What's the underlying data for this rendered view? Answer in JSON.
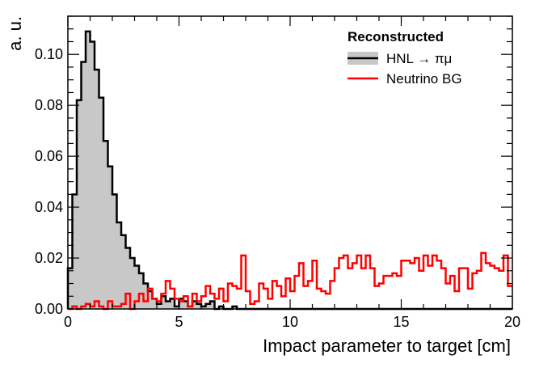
{
  "chart_data": {
    "type": "histogram",
    "title": "",
    "xlabel": "Impact parameter to target [cm]",
    "ylabel": "a. u.",
    "xlim": [
      0,
      20
    ],
    "ylim": [
      0,
      0.115
    ],
    "x_ticks": [
      0,
      5,
      10,
      15,
      20
    ],
    "x_tick_labels": [
      "0",
      "5",
      "10",
      "15",
      "20"
    ],
    "y_ticks": [
      0,
      0.02,
      0.04,
      0.06,
      0.08,
      0.1
    ],
    "y_tick_labels": [
      "0.00",
      "0.02",
      "0.04",
      "0.06",
      "0.08",
      "0.10"
    ],
    "grid": false,
    "legend": {
      "title": "Reconstructed",
      "placement": "top-right"
    },
    "bin_width": 0.2,
    "series": [
      {
        "name": "HNL → πμ",
        "color": "#000000",
        "fill": "#c8c8c8",
        "values": [
          0.016,
          0.045,
          0.082,
          0.097,
          0.109,
          0.105,
          0.094,
          0.083,
          0.066,
          0.056,
          0.045,
          0.034,
          0.029,
          0.024,
          0.02,
          0.017,
          0.014,
          0.01,
          0.007,
          0.004,
          0.002,
          0.005,
          0.003,
          0.004,
          0.001,
          0.004,
          0.003,
          0.001,
          0.003,
          0.002,
          0.001,
          0.002,
          0.003,
          0.0,
          0.001,
          0.0,
          0.0,
          0.001,
          0.0,
          0.0,
          0.0,
          0.0,
          0.0,
          0.0,
          0.0,
          0.0,
          0.0,
          0.0,
          0.0,
          0.0,
          0.0,
          0.0,
          0.0,
          0.0,
          0.0,
          0.0,
          0.0,
          0.0,
          0.0,
          0.0,
          0.0,
          0.0,
          0.0,
          0.0,
          0.0,
          0.0,
          0.0,
          0.0,
          0.0,
          0.0,
          0.0,
          0.0,
          0.0,
          0.0,
          0.0,
          0.0,
          0.0,
          0.0,
          0.0,
          0.0,
          0.0,
          0.0,
          0.0,
          0.0,
          0.0,
          0.0,
          0.0,
          0.0,
          0.0,
          0.0,
          0.0,
          0.0,
          0.0,
          0.0,
          0.0,
          0.0,
          0.0,
          0.0,
          0.0,
          0.0
        ]
      },
      {
        "name": "Neutrino BG",
        "color": "#ff0000",
        "values": [
          0.0,
          0.001,
          0.0,
          0.001,
          0.002,
          0.001,
          0.003,
          0.001,
          0.0,
          0.003,
          0.001,
          0.001,
          0.002,
          0.006,
          0.0,
          0.003,
          0.006,
          0.003,
          0.008,
          0.004,
          0.003,
          0.006,
          0.011,
          0.008,
          0.004,
          0.003,
          0.005,
          0.001,
          0.006,
          0.003,
          0.005,
          0.009,
          0.006,
          0.004,
          0.008,
          0.003,
          0.01,
          0.009,
          0.008,
          0.021,
          0.007,
          0.002,
          0.003,
          0.01,
          0.008,
          0.004,
          0.011,
          0.009,
          0.005,
          0.012,
          0.007,
          0.013,
          0.018,
          0.009,
          0.011,
          0.019,
          0.008,
          0.007,
          0.006,
          0.011,
          0.016,
          0.02,
          0.021,
          0.016,
          0.018,
          0.021,
          0.016,
          0.021,
          0.016,
          0.009,
          0.01,
          0.013,
          0.013,
          0.014,
          0.013,
          0.019,
          0.019,
          0.018,
          0.02,
          0.015,
          0.021,
          0.017,
          0.021,
          0.019,
          0.016,
          0.01,
          0.013,
          0.007,
          0.016,
          0.016,
          0.008,
          0.014,
          0.015,
          0.022,
          0.018,
          0.017,
          0.016,
          0.015,
          0.021,
          0.009
        ]
      }
    ]
  }
}
